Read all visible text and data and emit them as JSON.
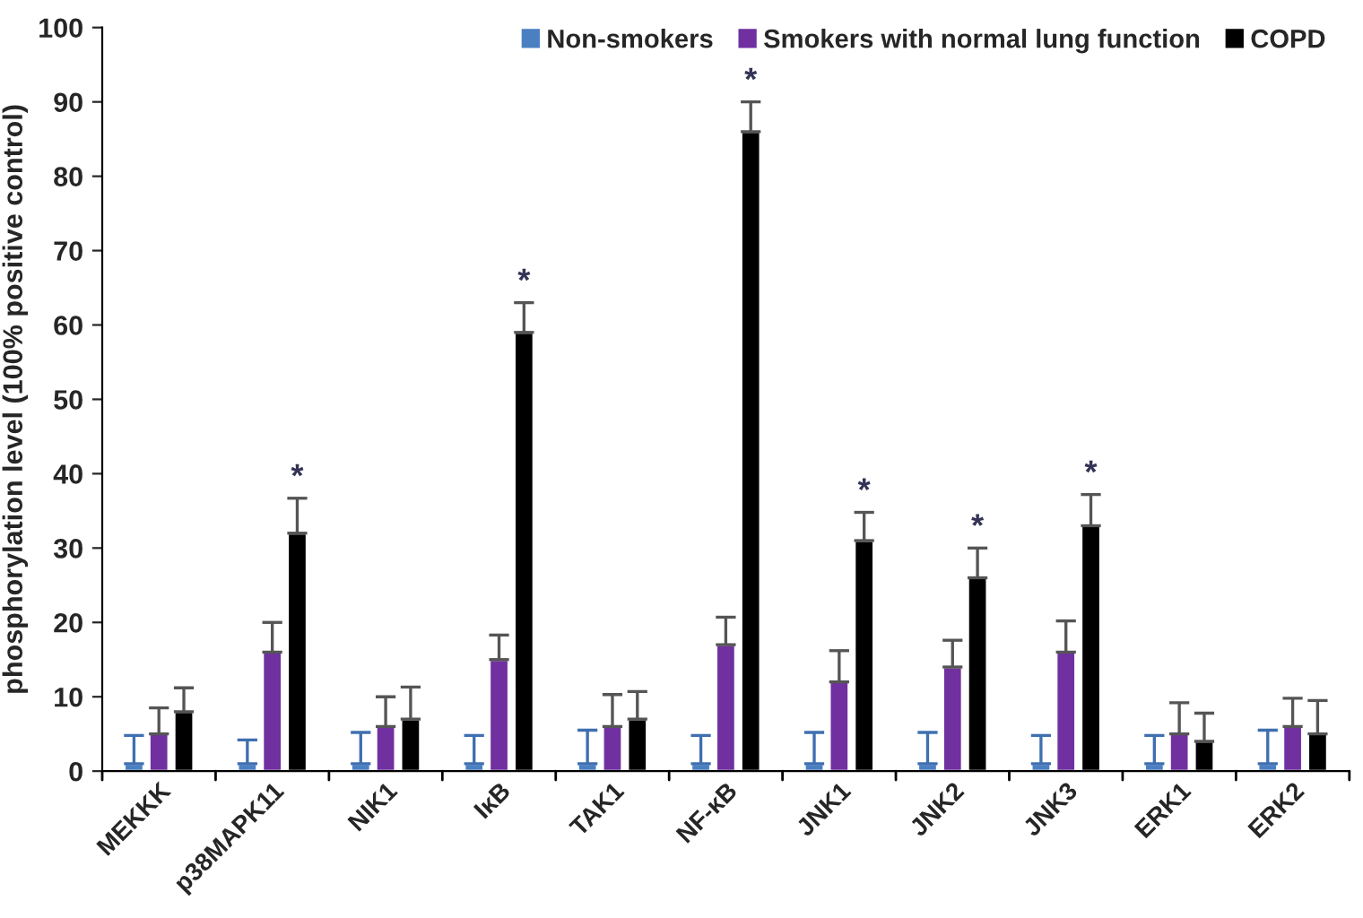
{
  "chart_data": {
    "type": "bar",
    "ylabel": "phosphorylation level (100% positive control)",
    "categories": [
      "MEKKK",
      "p38MAPK11",
      "NIK1",
      "IκB",
      "TAK1",
      "NF-κB",
      "JNK1",
      "JNK2",
      "JNK3",
      "ERK1",
      "ERK2"
    ],
    "series": [
      {
        "name": "Non-smokers",
        "color": "#4a7fc1",
        "values": [
          1,
          1,
          1,
          1,
          1,
          1,
          1,
          1,
          1,
          1,
          1
        ],
        "errors": [
          [
            1,
            4.8
          ],
          [
            1,
            4.2
          ],
          [
            1,
            5.2
          ],
          [
            1,
            4.8
          ],
          [
            1,
            5.5
          ],
          [
            1,
            4.8
          ],
          [
            1,
            5.2
          ],
          [
            1,
            5.2
          ],
          [
            1,
            4.8
          ],
          [
            1,
            4.8
          ],
          [
            1,
            5.5
          ]
        ]
      },
      {
        "name": "Smokers with normal lung function",
        "color": "#7030a0",
        "values": [
          5,
          16,
          6,
          15,
          6,
          17,
          12,
          14,
          16,
          5,
          6
        ],
        "errors": [
          [
            5,
            8.5
          ],
          [
            16,
            20
          ],
          [
            6,
            10
          ],
          [
            15,
            18.3
          ],
          [
            6,
            10.3
          ],
          [
            17,
            20.7
          ],
          [
            12,
            16.2
          ],
          [
            14,
            17.6
          ],
          [
            16,
            20.2
          ],
          [
            5,
            9.2
          ],
          [
            6,
            9.8
          ]
        ]
      },
      {
        "name": "COPD",
        "color": "#000000",
        "values": [
          8,
          32,
          7,
          59,
          7,
          86,
          31,
          26,
          33,
          4,
          5
        ],
        "errors": [
          [
            8,
            11.2
          ],
          [
            32,
            36.7
          ],
          [
            7,
            11.3
          ],
          [
            59,
            63
          ],
          [
            7,
            10.7
          ],
          [
            86,
            90
          ],
          [
            31,
            34.8
          ],
          [
            26,
            30
          ],
          [
            33,
            37.2
          ],
          [
            4,
            7.8
          ],
          [
            5,
            9.5
          ]
        ],
        "value_labels": [
          null,
          "*",
          null,
          "*",
          null,
          "*",
          "*",
          "*",
          "*",
          null,
          null
        ]
      }
    ],
    "ylim": [
      0,
      100
    ],
    "yticks": [
      0,
      10,
      20,
      30,
      40,
      50,
      60,
      70,
      80,
      90,
      100
    ],
    "grid": false,
    "legend": "top right"
  }
}
